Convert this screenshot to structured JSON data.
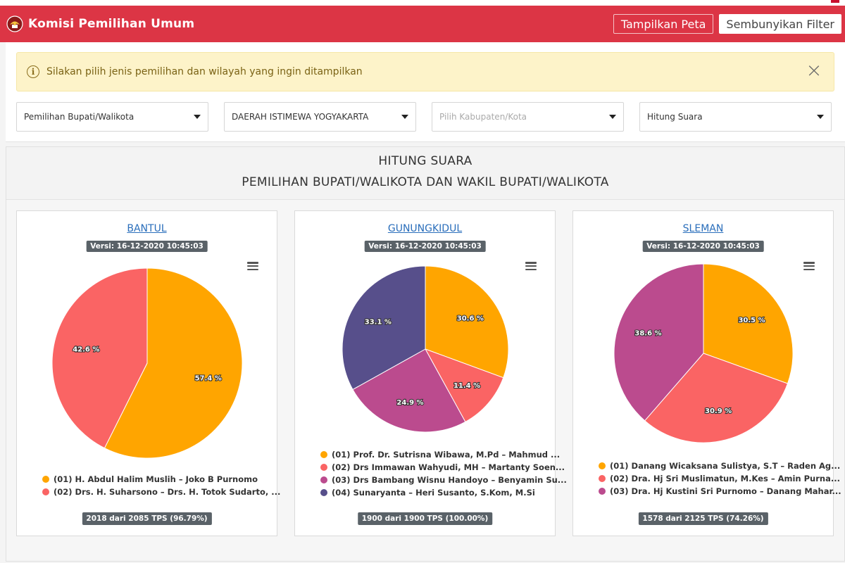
{
  "navbar": {
    "brand": "Komisi Pemilihan Umum",
    "btn_map": "Tampilkan Peta",
    "btn_filter": "Sembunyikan Filter",
    "color": "#dc3545"
  },
  "alert": {
    "text": "Silakan pilih jenis pemilihan dan wilayah yang ingin ditampilkan",
    "close": "×"
  },
  "filters": [
    {
      "value": "Pemilihan Bupati/Walikota",
      "placeholder": false
    },
    {
      "value": "DAERAH ISTIMEWA YOGYAKARTA",
      "placeholder": false
    },
    {
      "value": "Pilih Kabupaten/Kota",
      "placeholder": true
    },
    {
      "value": "Hitung Suara",
      "placeholder": false
    }
  ],
  "section": {
    "title": "HITUNG SUARA",
    "subtitle": "PEMILIHAN BUPATI/WALIKOTA DAN WAKIL BUPATI/WALIKOTA"
  },
  "colors": {
    "orange": "#ffa500",
    "red": "#fa6464",
    "purple": "#bb4b8e",
    "navy": "#574f8b"
  },
  "chart_data": [
    {
      "type": "pie",
      "title": "BANTUL",
      "version": "Versi: 16-12-2020 10:45:03",
      "tps": "2018 dari 2085 TPS (96.79%)",
      "series": [
        {
          "name": "(01) H. Abdul Halim Muslih – Joko B Purnomo",
          "value": 57.4,
          "label": "57.4 %",
          "color": "#ffa500"
        },
        {
          "name": "(02) Drs. H. Suharsono – Drs. H. Totok Sudarto, ...",
          "value": 42.6,
          "label": "42.6 %",
          "color": "#fa6464"
        }
      ]
    },
    {
      "type": "pie",
      "title": "GUNUNGKIDUL",
      "version": "Versi: 16-12-2020 10:45:03",
      "tps": "1900 dari 1900 TPS (100.00%)",
      "series": [
        {
          "name": "(01) Prof. Dr. Sutrisna Wibawa, M.Pd – Mahmud ...",
          "value": 30.6,
          "label": "30.6 %",
          "color": "#ffa500"
        },
        {
          "name": "(02) Drs Immawan Wahyudi, MH – Martanty Soen...",
          "value": 11.4,
          "label": "11.4 %",
          "color": "#fa6464"
        },
        {
          "name": "(03) Drs Bambang Wisnu Handoyo – Benyamin Su...",
          "value": 24.9,
          "label": "24.9 %",
          "color": "#bb4b8e"
        },
        {
          "name": "(04) Sunaryanta – Heri Susanto, S.Kom, M.Si",
          "value": 33.1,
          "label": "33.1 %",
          "color": "#574f8b"
        }
      ]
    },
    {
      "type": "pie",
      "title": "SLEMAN",
      "version": "Versi: 16-12-2020 10:45:03",
      "tps": "1578 dari 2125 TPS (74.26%)",
      "series": [
        {
          "name": "(01) Danang Wicaksana Sulistya, S.T – Raden Ag...",
          "value": 30.5,
          "label": "30.5 %",
          "color": "#ffa500"
        },
        {
          "name": "(02) Dra. Hj Sri Muslimatun, M.Kes – Amin Purna...",
          "value": 30.9,
          "label": "30.9 %",
          "color": "#fa6464"
        },
        {
          "name": "(03) Dra. Hj Kustini Sri Purnomo – Danang Mahar...",
          "value": 38.6,
          "label": "38.6 %",
          "color": "#bb4b8e"
        }
      ]
    }
  ]
}
